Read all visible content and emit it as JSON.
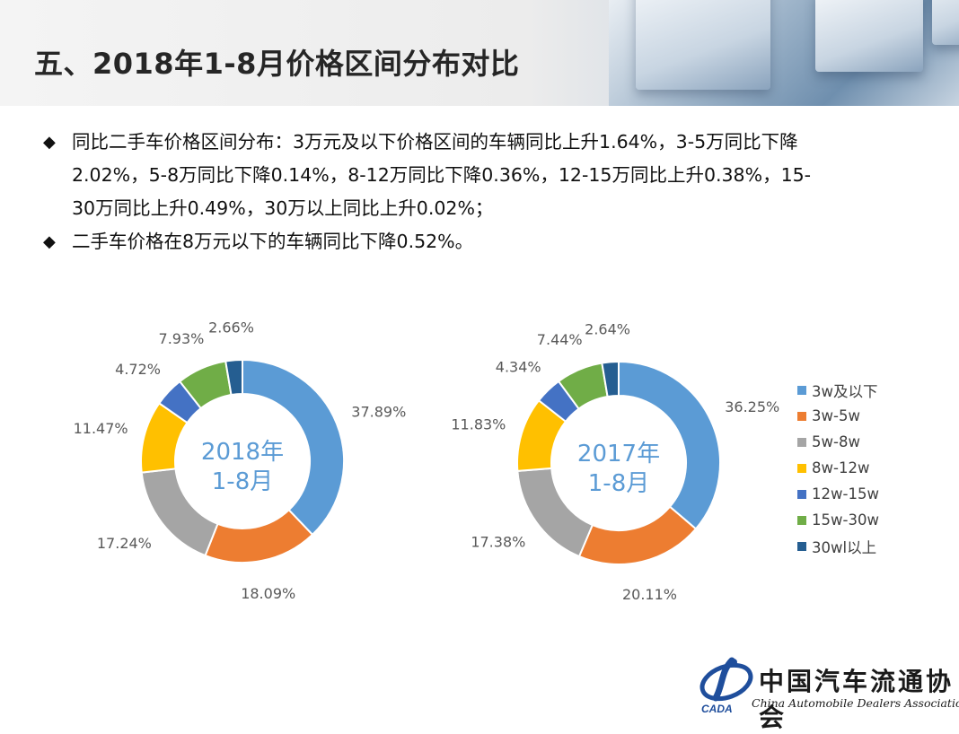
{
  "title": "五、2018年1-8月价格区间分布对比",
  "bullets": [
    {
      "lines": [
        "同比二手车价格区间分布：3万元及以下价格区间的车辆同比上升1.64%，3-5万同比下降",
        "2.02%，5-8万同比下降0.14%，8-12万同比下降0.36%，12-15万同比上升0.38%，15-",
        "30万同比上升0.49%，30万以上同比上升0.02%；"
      ]
    },
    {
      "lines": [
        "二手车价格在8万元以下的车辆同比下降0.52%。"
      ]
    }
  ],
  "bullet_marker": "◆",
  "chart_data": [
    {
      "type": "pie",
      "subtype": "donut",
      "center_label_lines": [
        "2018年",
        "1-8月"
      ],
      "categories": [
        "3w及以下",
        "3w-5w",
        "5w-8w",
        "8w-12w",
        "12w-15w",
        "15w-30w",
        "30w以上"
      ],
      "values": [
        37.89,
        18.09,
        17.24,
        11.47,
        4.72,
        7.93,
        2.66
      ],
      "labels": [
        "37.89%",
        "18.09%",
        "17.24%",
        "11.47%",
        "4.72%",
        "7.93%",
        "2.66%"
      ]
    },
    {
      "type": "pie",
      "subtype": "donut",
      "center_label_lines": [
        "2017年",
        "1-8月"
      ],
      "categories": [
        "3w及以下",
        "3w-5w",
        "5w-8w",
        "8w-12w",
        "12w-15w",
        "15w-30w",
        "30w以上"
      ],
      "values": [
        36.25,
        20.11,
        17.38,
        11.83,
        4.34,
        7.44,
        2.64
      ],
      "labels": [
        "36.25%",
        "20.11%",
        "17.38%",
        "11.83%",
        "4.34%",
        "7.44%",
        "2.64%"
      ]
    }
  ],
  "legend": {
    "placement": "right",
    "entries": [
      "3w及以下",
      "3w-5w",
      "5w-8w",
      "8w-12w",
      "12w-15w",
      "15w-30w",
      "30wl以上"
    ]
  },
  "colors": [
    "#5b9bd5",
    "#ed7d31",
    "#a5a5a5",
    "#ffc000",
    "#4472c4",
    "#70ad47",
    "#255e91"
  ],
  "center_label_color": "#5b9bd5",
  "logo": {
    "cn": "中国汽车流通协会",
    "en": "China Automobile Dealers Association",
    "emblem_text": "CADA"
  }
}
